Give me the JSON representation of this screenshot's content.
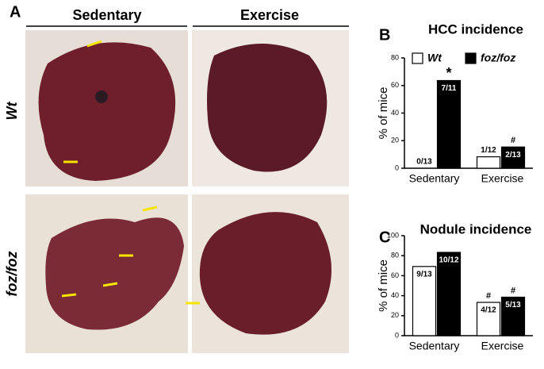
{
  "panel_labels": [
    "A",
    "B",
    "C"
  ],
  "photo_panel": {
    "columns": [
      "Sedentary",
      "Exercise"
    ],
    "rows": [
      "Wt",
      "foz/foz"
    ]
  },
  "chart_data": [
    {
      "type": "bar",
      "title": "HCC incidence",
      "y_label": "% of mice",
      "categories": [
        "Sedentary",
        "Exercise"
      ],
      "series": [
        {
          "name": "Wt",
          "color": "#ffffff",
          "values": [
            0,
            8.3
          ],
          "value_labels": [
            "0/13",
            "1/12"
          ],
          "markers": [
            null,
            null
          ]
        },
        {
          "name": "foz/foz",
          "color": "#000000",
          "values": [
            63.6,
            15.4
          ],
          "value_labels": [
            "7/11",
            "2/13"
          ],
          "markers": [
            "*",
            "#"
          ]
        }
      ],
      "ylim": [
        0,
        80
      ],
      "yticks": [
        0,
        20,
        40,
        60,
        80
      ]
    },
    {
      "type": "bar",
      "title": "Nodule incidence",
      "y_label": "% of mice",
      "categories": [
        "Sedentary",
        "Exercise"
      ],
      "series": [
        {
          "name": "Wt",
          "color": "#ffffff",
          "values": [
            69.2,
            33.3
          ],
          "value_labels": [
            "9/13",
            "4/12"
          ],
          "markers": [
            null,
            "#"
          ]
        },
        {
          "name": "foz/foz",
          "color": "#000000",
          "values": [
            83.3,
            38.5
          ],
          "value_labels": [
            "10/12",
            "5/13"
          ],
          "markers": [
            null,
            "#"
          ]
        }
      ],
      "ylim": [
        0,
        100
      ],
      "yticks": [
        0,
        20,
        40,
        60,
        80,
        100
      ]
    }
  ]
}
